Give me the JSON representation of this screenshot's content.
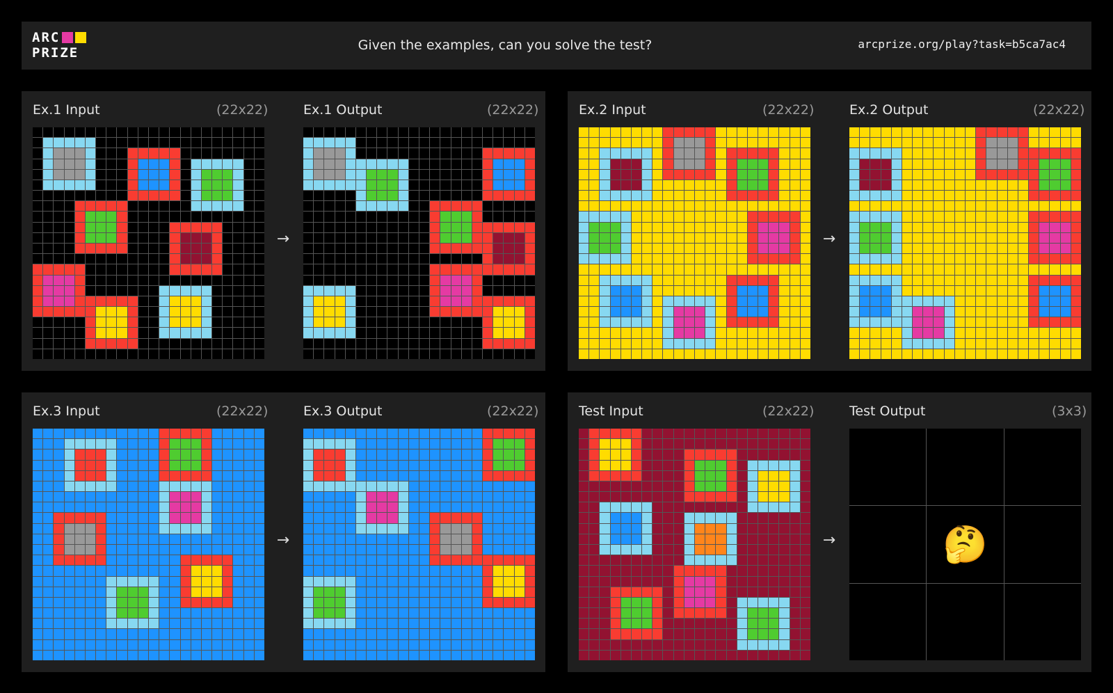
{
  "header": {
    "logo_line1": "ARC",
    "logo_line2": "PRIZE",
    "title": "Given the examples, can you solve the test?",
    "url": "arcprize.org/play?task=b5ca7ac4"
  },
  "colors": {
    "black": "#000000",
    "yellow": "#ffdc00",
    "blue": "#1e93ff",
    "maroon": "#921231",
    "red": "#f93c31",
    "lightblue": "#87d8f1",
    "gray": "#999999",
    "green": "#4fcc30",
    "magenta": "#e53aa3",
    "orange": "#ff851b",
    "logo_magenta": "#e53aa3",
    "logo_yellow": "#ffdc00"
  },
  "arrow": "→",
  "examples": [
    {
      "input_label": "Ex.1 Input",
      "input_dims": "(22x22)",
      "output_label": "Ex.1 Output",
      "output_dims": "(22x22)",
      "background": "black",
      "input_boxes": [
        {
          "r": 1,
          "c": 1,
          "border": "lightblue",
          "inner": "gray"
        },
        {
          "r": 2,
          "c": 9,
          "border": "red",
          "inner": "blue"
        },
        {
          "r": 3,
          "c": 15,
          "border": "lightblue",
          "inner": "green"
        },
        {
          "r": 7,
          "c": 4,
          "border": "red",
          "inner": "green"
        },
        {
          "r": 9,
          "c": 13,
          "border": "red",
          "inner": "maroon"
        },
        {
          "r": 13,
          "c": 0,
          "border": "red",
          "inner": "magenta"
        },
        {
          "r": 15,
          "c": 12,
          "border": "lightblue",
          "inner": "yellow"
        },
        {
          "r": 16,
          "c": 5,
          "border": "red",
          "inner": "yellow"
        }
      ],
      "output_boxes": [
        {
          "r": 1,
          "c": 0,
          "border": "lightblue",
          "inner": "gray"
        },
        {
          "r": 2,
          "c": 17,
          "border": "red",
          "inner": "blue"
        },
        {
          "r": 3,
          "c": 5,
          "border": "lightblue",
          "inner": "green"
        },
        {
          "r": 7,
          "c": 12,
          "border": "red",
          "inner": "green"
        },
        {
          "r": 9,
          "c": 17,
          "border": "red",
          "inner": "maroon"
        },
        {
          "r": 13,
          "c": 12,
          "border": "red",
          "inner": "magenta"
        },
        {
          "r": 15,
          "c": 0,
          "border": "lightblue",
          "inner": "yellow"
        },
        {
          "r": 16,
          "c": 17,
          "border": "red",
          "inner": "yellow"
        }
      ]
    },
    {
      "input_label": "Ex.2 Input",
      "input_dims": "(22x22)",
      "output_label": "Ex.2 Output",
      "output_dims": "(22x22)",
      "background": "yellow",
      "input_boxes": [
        {
          "r": 0,
          "c": 8,
          "border": "red",
          "inner": "gray"
        },
        {
          "r": 2,
          "c": 2,
          "border": "lightblue",
          "inner": "maroon"
        },
        {
          "r": 2,
          "c": 14,
          "border": "red",
          "inner": "green"
        },
        {
          "r": 8,
          "c": 0,
          "border": "lightblue",
          "inner": "green"
        },
        {
          "r": 8,
          "c": 16,
          "border": "red",
          "inner": "magenta"
        },
        {
          "r": 14,
          "c": 2,
          "border": "lightblue",
          "inner": "blue"
        },
        {
          "r": 14,
          "c": 14,
          "border": "red",
          "inner": "blue"
        },
        {
          "r": 16,
          "c": 8,
          "border": "lightblue",
          "inner": "magenta"
        }
      ],
      "output_boxes": [
        {
          "r": 0,
          "c": 12,
          "border": "red",
          "inner": "gray"
        },
        {
          "r": 2,
          "c": 0,
          "border": "lightblue",
          "inner": "maroon"
        },
        {
          "r": 2,
          "c": 17,
          "border": "red",
          "inner": "green"
        },
        {
          "r": 8,
          "c": 0,
          "border": "lightblue",
          "inner": "green"
        },
        {
          "r": 8,
          "c": 17,
          "border": "red",
          "inner": "magenta"
        },
        {
          "r": 14,
          "c": 0,
          "border": "lightblue",
          "inner": "blue"
        },
        {
          "r": 14,
          "c": 17,
          "border": "red",
          "inner": "blue"
        },
        {
          "r": 16,
          "c": 5,
          "border": "lightblue",
          "inner": "magenta"
        }
      ]
    },
    {
      "input_label": "Ex.3 Input",
      "input_dims": "(22x22)",
      "output_label": "Ex.3 Output",
      "output_dims": "(22x22)",
      "background": "blue",
      "input_boxes": [
        {
          "r": 0,
          "c": 12,
          "border": "red",
          "inner": "green"
        },
        {
          "r": 1,
          "c": 3,
          "border": "lightblue",
          "inner": "red"
        },
        {
          "r": 5,
          "c": 12,
          "border": "lightblue",
          "inner": "magenta"
        },
        {
          "r": 8,
          "c": 2,
          "border": "red",
          "inner": "gray"
        },
        {
          "r": 12,
          "c": 14,
          "border": "red",
          "inner": "yellow"
        },
        {
          "r": 14,
          "c": 7,
          "border": "lightblue",
          "inner": "green"
        }
      ],
      "output_boxes": [
        {
          "r": 0,
          "c": 17,
          "border": "red",
          "inner": "green"
        },
        {
          "r": 1,
          "c": 0,
          "border": "lightblue",
          "inner": "red"
        },
        {
          "r": 5,
          "c": 5,
          "border": "lightblue",
          "inner": "magenta"
        },
        {
          "r": 8,
          "c": 12,
          "border": "red",
          "inner": "gray"
        },
        {
          "r": 12,
          "c": 17,
          "border": "red",
          "inner": "yellow"
        },
        {
          "r": 14,
          "c": 0,
          "border": "lightblue",
          "inner": "green"
        }
      ]
    },
    {
      "input_label": "Test Input",
      "input_dims": "(22x22)",
      "output_label": "Test Output",
      "output_dims": "(3x3)",
      "background": "maroon",
      "input_boxes": [
        {
          "r": 0,
          "c": 1,
          "border": "red",
          "inner": "yellow"
        },
        {
          "r": 2,
          "c": 10,
          "border": "red",
          "inner": "green"
        },
        {
          "r": 3,
          "c": 16,
          "border": "lightblue",
          "inner": "yellow"
        },
        {
          "r": 7,
          "c": 2,
          "border": "lightblue",
          "inner": "blue"
        },
        {
          "r": 8,
          "c": 10,
          "border": "lightblue",
          "inner": "orange"
        },
        {
          "r": 13,
          "c": 9,
          "border": "red",
          "inner": "magenta"
        },
        {
          "r": 15,
          "c": 3,
          "border": "red",
          "inner": "green"
        },
        {
          "r": 16,
          "c": 15,
          "border": "lightblue",
          "inner": "green"
        }
      ],
      "test_output_emoji": "🤔"
    }
  ]
}
